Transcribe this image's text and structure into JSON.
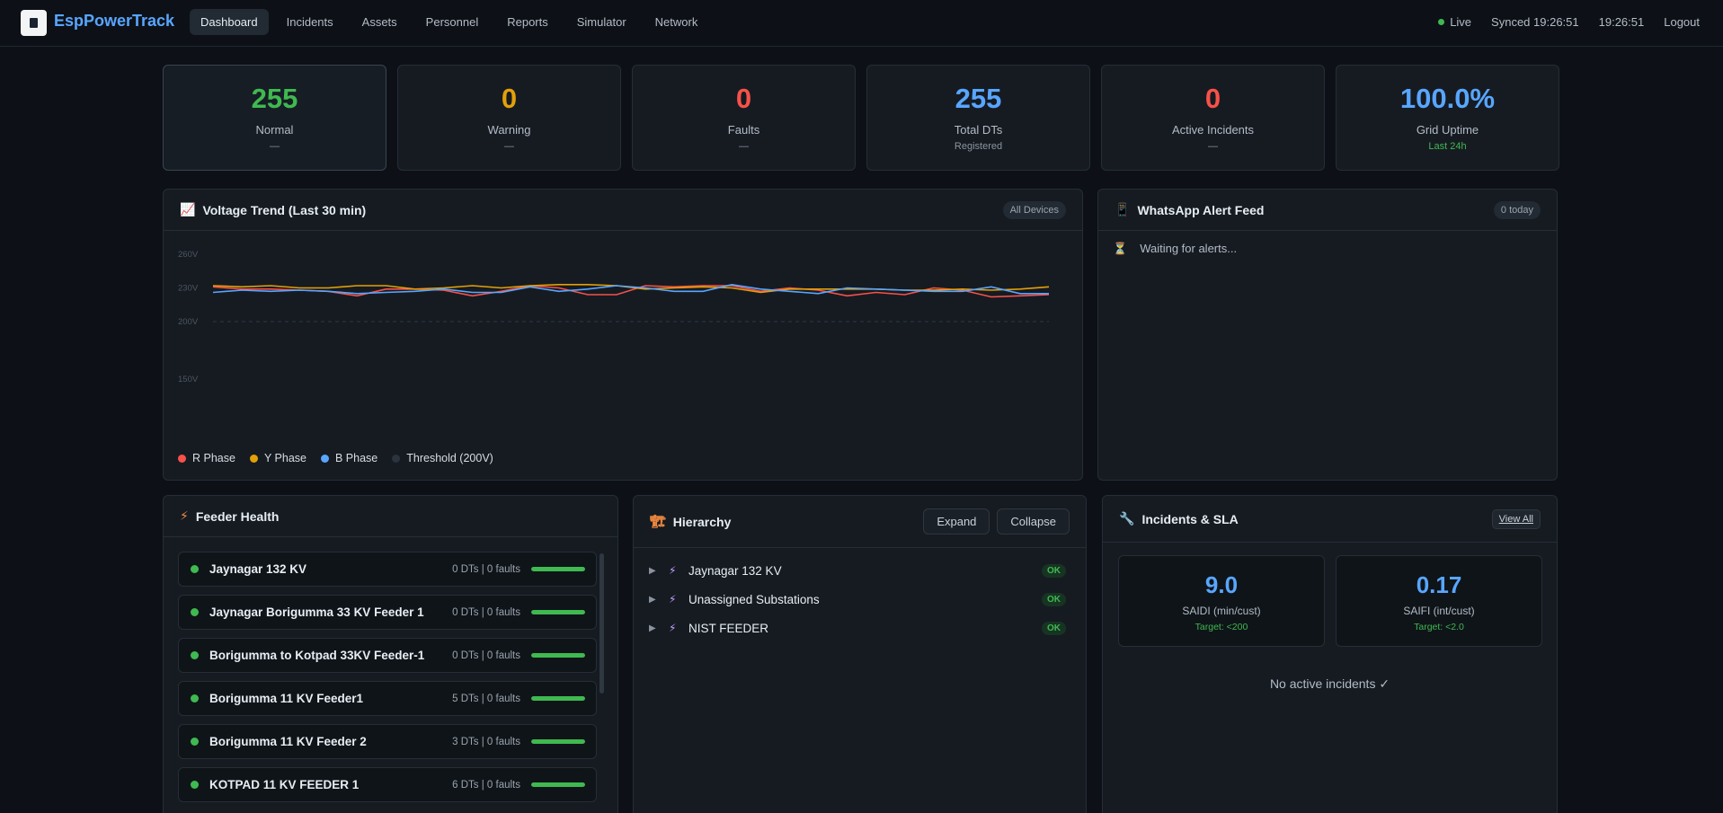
{
  "app": {
    "brand": "EspPowerTrack"
  },
  "nav": [
    {
      "label": "Dashboard",
      "active": true
    },
    {
      "label": "Incidents"
    },
    {
      "label": "Assets"
    },
    {
      "label": "Personnel"
    },
    {
      "label": "Reports"
    },
    {
      "label": "Simulator"
    },
    {
      "label": "Network"
    }
  ],
  "status": {
    "live": "Live",
    "synced": "Synced 19:26:51",
    "clock": "19:26:51",
    "logout": "Logout"
  },
  "stats": [
    {
      "value": "255",
      "label": "Normal",
      "sub": "—",
      "color": "#3fb950"
    },
    {
      "value": "0",
      "label": "Warning",
      "sub": "—",
      "color": "#e3a008"
    },
    {
      "value": "0",
      "label": "Faults",
      "sub": "—",
      "color": "#f85149"
    },
    {
      "value": "255",
      "label": "Total DTs",
      "sub": "Registered",
      "color": "#58a6ff"
    },
    {
      "value": "0",
      "label": "Active Incidents",
      "sub": "—",
      "color": "#f85149"
    },
    {
      "value": "100.0%",
      "label": "Grid Uptime",
      "sub": "Last 24h",
      "color": "#58a6ff",
      "sub_color": "#3fb950"
    }
  ],
  "voltage": {
    "icon": "📈",
    "title": "Voltage Trend (Last 30 min)",
    "scope": "All Devices",
    "legend": [
      {
        "label": "R Phase",
        "color": "#f85149"
      },
      {
        "label": "Y Phase",
        "color": "#e3a008"
      },
      {
        "label": "B Phase",
        "color": "#58a6ff"
      },
      {
        "label": "Threshold (200V)",
        "color": "#2b333d"
      }
    ]
  },
  "chart_data": {
    "type": "line",
    "ylabel": "",
    "y_ticks": [
      "260V",
      "230V",
      "200V",
      "150V"
    ],
    "ylim": [
      150,
      260
    ],
    "threshold": 200,
    "x": [
      1,
      2,
      3,
      4,
      5,
      6,
      7,
      8,
      9,
      10,
      11,
      12,
      13,
      14,
      15,
      16,
      17,
      18,
      19,
      20,
      21,
      22,
      23,
      24,
      25,
      26,
      27,
      28,
      29,
      30
    ],
    "series": [
      {
        "name": "R Phase",
        "color": "#f85149",
        "values": [
          231,
          229,
          229,
          228,
          227,
          223,
          229,
          229,
          228,
          223,
          227,
          232,
          230,
          224,
          224,
          232,
          231,
          232,
          232,
          227,
          230,
          228,
          223,
          226,
          224,
          230,
          228,
          222,
          223,
          224
        ]
      },
      {
        "name": "Y Phase",
        "color": "#e3a008",
        "values": [
          232,
          231,
          232,
          230,
          230,
          232,
          232,
          229,
          230,
          232,
          230,
          232,
          233,
          233,
          232,
          229,
          230,
          231,
          230,
          226,
          229,
          229,
          229,
          229,
          228,
          228,
          229,
          228,
          229,
          231
        ]
      },
      {
        "name": "B Phase",
        "color": "#58a6ff",
        "values": [
          226,
          228,
          227,
          228,
          227,
          225,
          226,
          227,
          229,
          226,
          226,
          231,
          227,
          229,
          232,
          230,
          227,
          227,
          233,
          229,
          227,
          225,
          230,
          229,
          228,
          227,
          227,
          231,
          225,
          225
        ]
      }
    ]
  },
  "whatsapp": {
    "icon": "📱",
    "title": "WhatsApp Alert Feed",
    "badge": "0 today",
    "waiting_icon": "⏳",
    "waiting": "Waiting for alerts..."
  },
  "feeder": {
    "icon": "⚡",
    "title": "Feeder Health",
    "items": [
      {
        "name": "Jaynagar 132 KV",
        "stat": "0 DTs | 0 faults",
        "health": 1.0
      },
      {
        "name": "Jaynagar Borigumma 33 KV Feeder 1",
        "stat": "0 DTs | 0 faults",
        "health": 1.0
      },
      {
        "name": "Borigumma to Kotpad 33KV Feeder-1",
        "stat": "0 DTs | 0 faults",
        "health": 1.0
      },
      {
        "name": "Borigumma 11 KV Feeder1",
        "stat": "5 DTs | 0 faults",
        "health": 1.0
      },
      {
        "name": "Borigumma 11 KV Feeder 2",
        "stat": "3 DTs | 0 faults",
        "health": 1.0
      },
      {
        "name": "KOTPAD 11 KV FEEDER 1",
        "stat": "6 DTs | 0 faults",
        "health": 1.0
      }
    ]
  },
  "hierarchy": {
    "icon": "🏗",
    "title": "Hierarchy",
    "expand": "Expand",
    "collapse": "Collapse",
    "items": [
      {
        "label": "Jaynagar 132 KV",
        "status": "OK"
      },
      {
        "label": "Unassigned Substations",
        "status": "OK"
      },
      {
        "label": "NIST FEEDER",
        "status": "OK"
      }
    ]
  },
  "sla": {
    "icon": "🔧",
    "title": "Incidents & SLA",
    "view_all": "View All",
    "metrics": [
      {
        "value": "9.0",
        "label": "SAIDI (min/cust)",
        "target": "Target: <200"
      },
      {
        "value": "0.17",
        "label": "SAIFI (int/cust)",
        "target": "Target: <2.0"
      }
    ],
    "empty": "No active incidents ✓"
  }
}
